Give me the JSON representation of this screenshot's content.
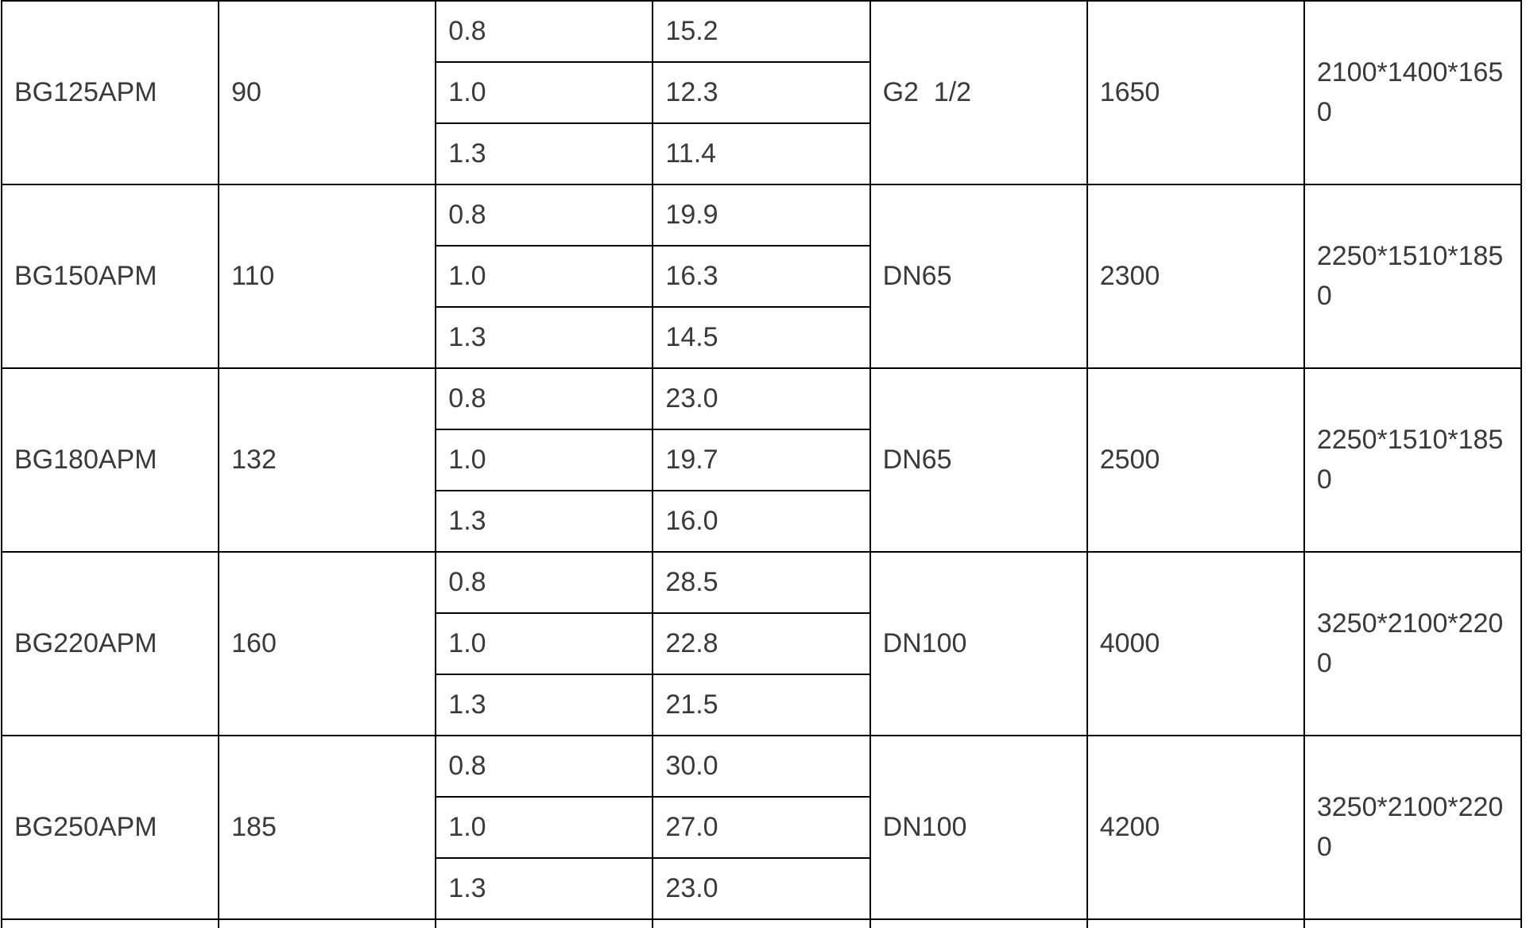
{
  "colors": {
    "border": "#000000",
    "text": "#3a3a3a",
    "background": "#ffffff"
  },
  "chart_data": {
    "type": "table",
    "header_visible": false,
    "rows": [
      {
        "model": "BG125APM",
        "power": "90",
        "subrows": [
          {
            "pressure": "0.8",
            "capacity": "15.2"
          },
          {
            "pressure": "1.0",
            "capacity": "12.3"
          },
          {
            "pressure": "1.3",
            "capacity": "11.4"
          }
        ],
        "outlet": "G2  1/2",
        "weight": "1650",
        "dimensions": "2100*1400*1650"
      },
      {
        "model": "BG150APM",
        "power": "110",
        "subrows": [
          {
            "pressure": "0.8",
            "capacity": "19.9"
          },
          {
            "pressure": "1.0",
            "capacity": "16.3"
          },
          {
            "pressure": "1.3",
            "capacity": "14.5"
          }
        ],
        "outlet": "DN65",
        "weight": "2300",
        "dimensions": "2250*1510*1850"
      },
      {
        "model": "BG180APM",
        "power": "132",
        "subrows": [
          {
            "pressure": "0.8",
            "capacity": "23.0"
          },
          {
            "pressure": "1.0",
            "capacity": "19.7"
          },
          {
            "pressure": "1.3",
            "capacity": "16.0"
          }
        ],
        "outlet": "DN65",
        "weight": "2500",
        "dimensions": "2250*1510*1850"
      },
      {
        "model": "BG220APM",
        "power": "160",
        "subrows": [
          {
            "pressure": "0.8",
            "capacity": "28.5"
          },
          {
            "pressure": "1.0",
            "capacity": "22.8"
          },
          {
            "pressure": "1.3",
            "capacity": "21.5"
          }
        ],
        "outlet": "DN100",
        "weight": "4000",
        "dimensions": "3250*2100*2200"
      },
      {
        "model": "BG250APM",
        "power": "185",
        "subrows": [
          {
            "pressure": "0.8",
            "capacity": "30.0"
          },
          {
            "pressure": "1.0",
            "capacity": "27.0"
          },
          {
            "pressure": "1.3",
            "capacity": "23.0"
          }
        ],
        "outlet": "DN100",
        "weight": "4200",
        "dimensions": "3250*2100*2200"
      }
    ]
  }
}
